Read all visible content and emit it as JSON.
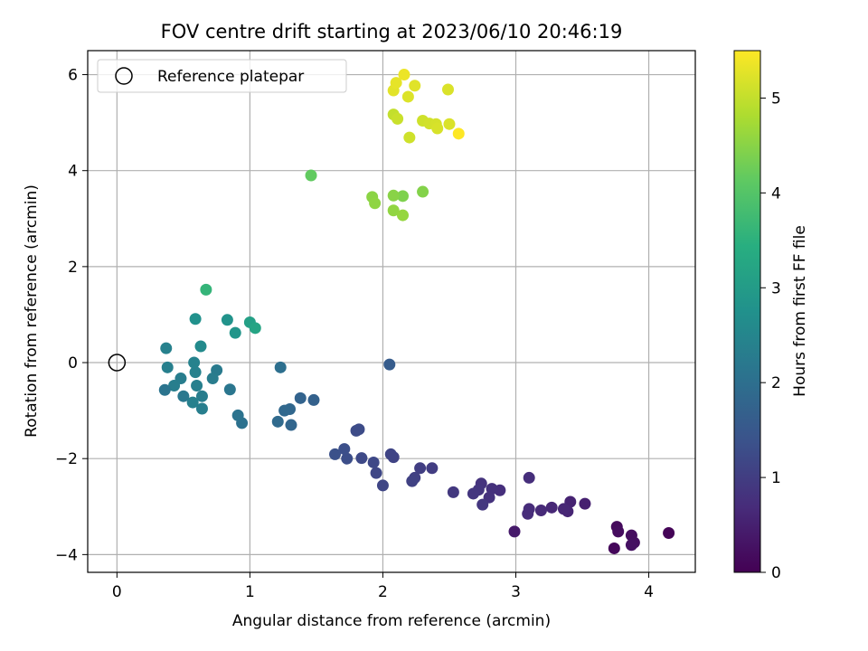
{
  "chart_data": {
    "type": "scatter",
    "title": "FOV centre drift starting at 2023/06/10 20:46:19",
    "xlabel": "Angular distance from reference (arcmin)",
    "ylabel": "Rotation from reference (arcmin)",
    "xlim": [
      -0.22,
      4.35
    ],
    "ylim": [
      -4.37,
      6.5
    ],
    "xticks": [
      0,
      1,
      2,
      3,
      4
    ],
    "xtick_labels": [
      "0",
      "1",
      "2",
      "3",
      "4"
    ],
    "yticks": [
      -4,
      -2,
      0,
      2,
      4,
      6
    ],
    "ytick_labels": [
      "−4",
      "−2",
      "0",
      "2",
      "4",
      "6"
    ],
    "grid": true,
    "legend": {
      "position": "top-left",
      "entries": [
        {
          "label": "Reference platepar",
          "marker": "open-circle"
        }
      ]
    },
    "reference_point": {
      "x": 0,
      "y": 0
    },
    "colorbar": {
      "label": "Hours from first FF file",
      "colormap": "viridis",
      "range": [
        0,
        5.5
      ],
      "ticks": [
        0,
        1,
        2,
        3,
        4,
        5
      ],
      "tick_labels": [
        "0",
        "1",
        "2",
        "3",
        "4",
        "5"
      ]
    },
    "points": [
      {
        "x": 4.15,
        "y": -3.55,
        "c": 0.05
      },
      {
        "x": 3.74,
        "y": -3.87,
        "c": 0.1
      },
      {
        "x": 3.76,
        "y": -3.42,
        "c": 0.15
      },
      {
        "x": 3.77,
        "y": -3.52,
        "c": 0.18
      },
      {
        "x": 3.87,
        "y": -3.6,
        "c": 0.2
      },
      {
        "x": 3.89,
        "y": -3.75,
        "c": 0.22
      },
      {
        "x": 3.87,
        "y": -3.8,
        "c": 0.25
      },
      {
        "x": 2.99,
        "y": -3.52,
        "c": 0.4
      },
      {
        "x": 3.52,
        "y": -2.94,
        "c": 0.5
      },
      {
        "x": 3.41,
        "y": -2.9,
        "c": 0.55
      },
      {
        "x": 3.39,
        "y": -3.1,
        "c": 0.58
      },
      {
        "x": 3.36,
        "y": -3.05,
        "c": 0.6
      },
      {
        "x": 3.27,
        "y": -3.02,
        "c": 0.62
      },
      {
        "x": 3.19,
        "y": -3.08,
        "c": 0.65
      },
      {
        "x": 3.1,
        "y": -3.05,
        "c": 0.68
      },
      {
        "x": 3.09,
        "y": -3.15,
        "c": 0.7
      },
      {
        "x": 3.1,
        "y": -2.4,
        "c": 0.72
      },
      {
        "x": 2.88,
        "y": -2.66,
        "c": 0.75
      },
      {
        "x": 2.82,
        "y": -2.63,
        "c": 0.78
      },
      {
        "x": 2.8,
        "y": -2.81,
        "c": 0.8
      },
      {
        "x": 2.74,
        "y": -2.52,
        "c": 0.82
      },
      {
        "x": 2.72,
        "y": -2.65,
        "c": 0.85
      },
      {
        "x": 2.68,
        "y": -2.73,
        "c": 0.87
      },
      {
        "x": 2.75,
        "y": -2.96,
        "c": 0.88
      },
      {
        "x": 2.53,
        "y": -2.7,
        "c": 0.9
      },
      {
        "x": 2.37,
        "y": -2.2,
        "c": 1.0
      },
      {
        "x": 2.28,
        "y": -2.2,
        "c": 1.02
      },
      {
        "x": 2.24,
        "y": -2.4,
        "c": 1.05
      },
      {
        "x": 2.22,
        "y": -2.47,
        "c": 1.07
      },
      {
        "x": 2.08,
        "y": -1.97,
        "c": 1.1
      },
      {
        "x": 2.06,
        "y": -1.91,
        "c": 1.12
      },
      {
        "x": 2.0,
        "y": -2.56,
        "c": 1.15
      },
      {
        "x": 1.95,
        "y": -2.3,
        "c": 1.17
      },
      {
        "x": 1.93,
        "y": -2.08,
        "c": 1.2
      },
      {
        "x": 1.84,
        "y": -1.99,
        "c": 1.22
      },
      {
        "x": 1.82,
        "y": -1.39,
        "c": 1.25
      },
      {
        "x": 1.8,
        "y": -1.42,
        "c": 1.27
      },
      {
        "x": 1.73,
        "y": -2.0,
        "c": 1.3
      },
      {
        "x": 1.71,
        "y": -1.8,
        "c": 1.32
      },
      {
        "x": 1.64,
        "y": -1.91,
        "c": 1.35
      },
      {
        "x": 2.05,
        "y": -0.04,
        "c": 1.6
      },
      {
        "x": 1.48,
        "y": -0.78,
        "c": 1.7
      },
      {
        "x": 1.38,
        "y": -0.74,
        "c": 1.75
      },
      {
        "x": 1.31,
        "y": -1.3,
        "c": 1.8
      },
      {
        "x": 1.3,
        "y": -0.97,
        "c": 1.82
      },
      {
        "x": 1.26,
        "y": -1.0,
        "c": 1.85
      },
      {
        "x": 1.21,
        "y": -1.23,
        "c": 1.88
      },
      {
        "x": 1.23,
        "y": -0.1,
        "c": 2.0
      },
      {
        "x": 0.94,
        "y": -1.26,
        "c": 2.05
      },
      {
        "x": 0.91,
        "y": -1.1,
        "c": 2.08
      },
      {
        "x": 0.85,
        "y": -0.56,
        "c": 2.15
      },
      {
        "x": 0.75,
        "y": -0.16,
        "c": 2.25
      },
      {
        "x": 0.72,
        "y": -0.33,
        "c": 2.28
      },
      {
        "x": 0.64,
        "y": -0.7,
        "c": 2.3
      },
      {
        "x": 0.64,
        "y": -0.96,
        "c": 2.32
      },
      {
        "x": 0.6,
        "y": -0.48,
        "c": 2.35
      },
      {
        "x": 0.57,
        "y": -0.83,
        "c": 2.37
      },
      {
        "x": 0.59,
        "y": -0.2,
        "c": 2.4
      },
      {
        "x": 0.58,
        "y": 0.0,
        "c": 2.42
      },
      {
        "x": 0.5,
        "y": -0.7,
        "c": 2.2
      },
      {
        "x": 0.48,
        "y": -0.33,
        "c": 2.3
      },
      {
        "x": 0.43,
        "y": -0.48,
        "c": 2.32
      },
      {
        "x": 0.38,
        "y": -0.1,
        "c": 2.35
      },
      {
        "x": 0.36,
        "y": -0.57,
        "c": 2.1
      },
      {
        "x": 0.37,
        "y": 0.3,
        "c": 2.4
      },
      {
        "x": 0.63,
        "y": 0.34,
        "c": 2.6
      },
      {
        "x": 0.59,
        "y": 0.91,
        "c": 2.75
      },
      {
        "x": 0.83,
        "y": 0.89,
        "c": 2.8
      },
      {
        "x": 0.89,
        "y": 0.62,
        "c": 2.85
      },
      {
        "x": 1.0,
        "y": 0.84,
        "c": 3.1
      },
      {
        "x": 1.04,
        "y": 0.72,
        "c": 3.2
      },
      {
        "x": 0.67,
        "y": 1.52,
        "c": 3.6
      },
      {
        "x": 1.46,
        "y": 3.9,
        "c": 4.15
      },
      {
        "x": 2.15,
        "y": 3.47,
        "c": 4.4
      },
      {
        "x": 2.3,
        "y": 3.56,
        "c": 4.45
      },
      {
        "x": 2.08,
        "y": 3.48,
        "c": 4.5
      },
      {
        "x": 1.92,
        "y": 3.45,
        "c": 4.52
      },
      {
        "x": 1.94,
        "y": 3.32,
        "c": 4.55
      },
      {
        "x": 2.08,
        "y": 3.17,
        "c": 4.57
      },
      {
        "x": 2.15,
        "y": 3.07,
        "c": 4.6
      },
      {
        "x": 2.08,
        "y": 5.17,
        "c": 5.0
      },
      {
        "x": 2.11,
        "y": 5.08,
        "c": 5.05
      },
      {
        "x": 2.2,
        "y": 4.69,
        "c": 5.1
      },
      {
        "x": 2.3,
        "y": 5.04,
        "c": 5.1
      },
      {
        "x": 2.35,
        "y": 4.98,
        "c": 5.12
      },
      {
        "x": 2.4,
        "y": 4.97,
        "c": 5.15
      },
      {
        "x": 2.41,
        "y": 4.88,
        "c": 5.17
      },
      {
        "x": 2.5,
        "y": 4.97,
        "c": 5.2
      },
      {
        "x": 2.49,
        "y": 5.69,
        "c": 5.2
      },
      {
        "x": 2.19,
        "y": 5.54,
        "c": 5.22
      },
      {
        "x": 2.24,
        "y": 5.77,
        "c": 5.25
      },
      {
        "x": 2.08,
        "y": 5.67,
        "c": 5.27
      },
      {
        "x": 2.1,
        "y": 5.83,
        "c": 5.3
      },
      {
        "x": 2.16,
        "y": 6.0,
        "c": 5.35
      },
      {
        "x": 2.57,
        "y": 4.77,
        "c": 5.5
      }
    ]
  }
}
